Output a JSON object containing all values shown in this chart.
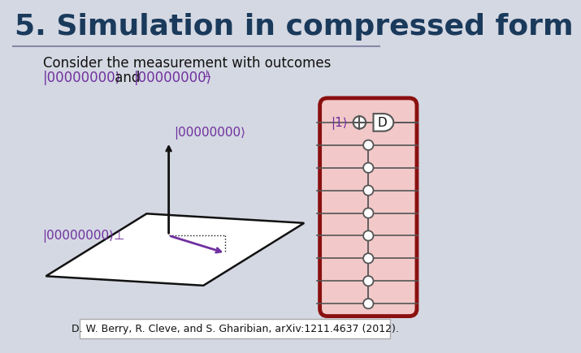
{
  "title": "5. Simulation in compressed form",
  "title_color": "#1a3a5c",
  "title_fontsize": 26,
  "bg_color": "#d4d8e2",
  "line_color": "#8888aa",
  "text1": "Consider the measurement with outcomes",
  "text2_purple1": "|00000000⟩",
  "text2_black": " and ",
  "text2_purple2": "|00000000⟩",
  "text2_sup": "⊥",
  "label_ket0": "|00000000⟩",
  "label_ketperp": "|00000000⟩⊥",
  "label_1": "|1⟩",
  "citation": "D. W. Berry, R. Cleve, and S. Gharibian, arXiv:1211.4637 (2012).",
  "purple_color": "#7030a0",
  "dark_red": "#8b1010",
  "circuit_bg": "#f2c8c8",
  "circuit_border": "#8b1010",
  "black": "#111111",
  "gray": "#555555"
}
